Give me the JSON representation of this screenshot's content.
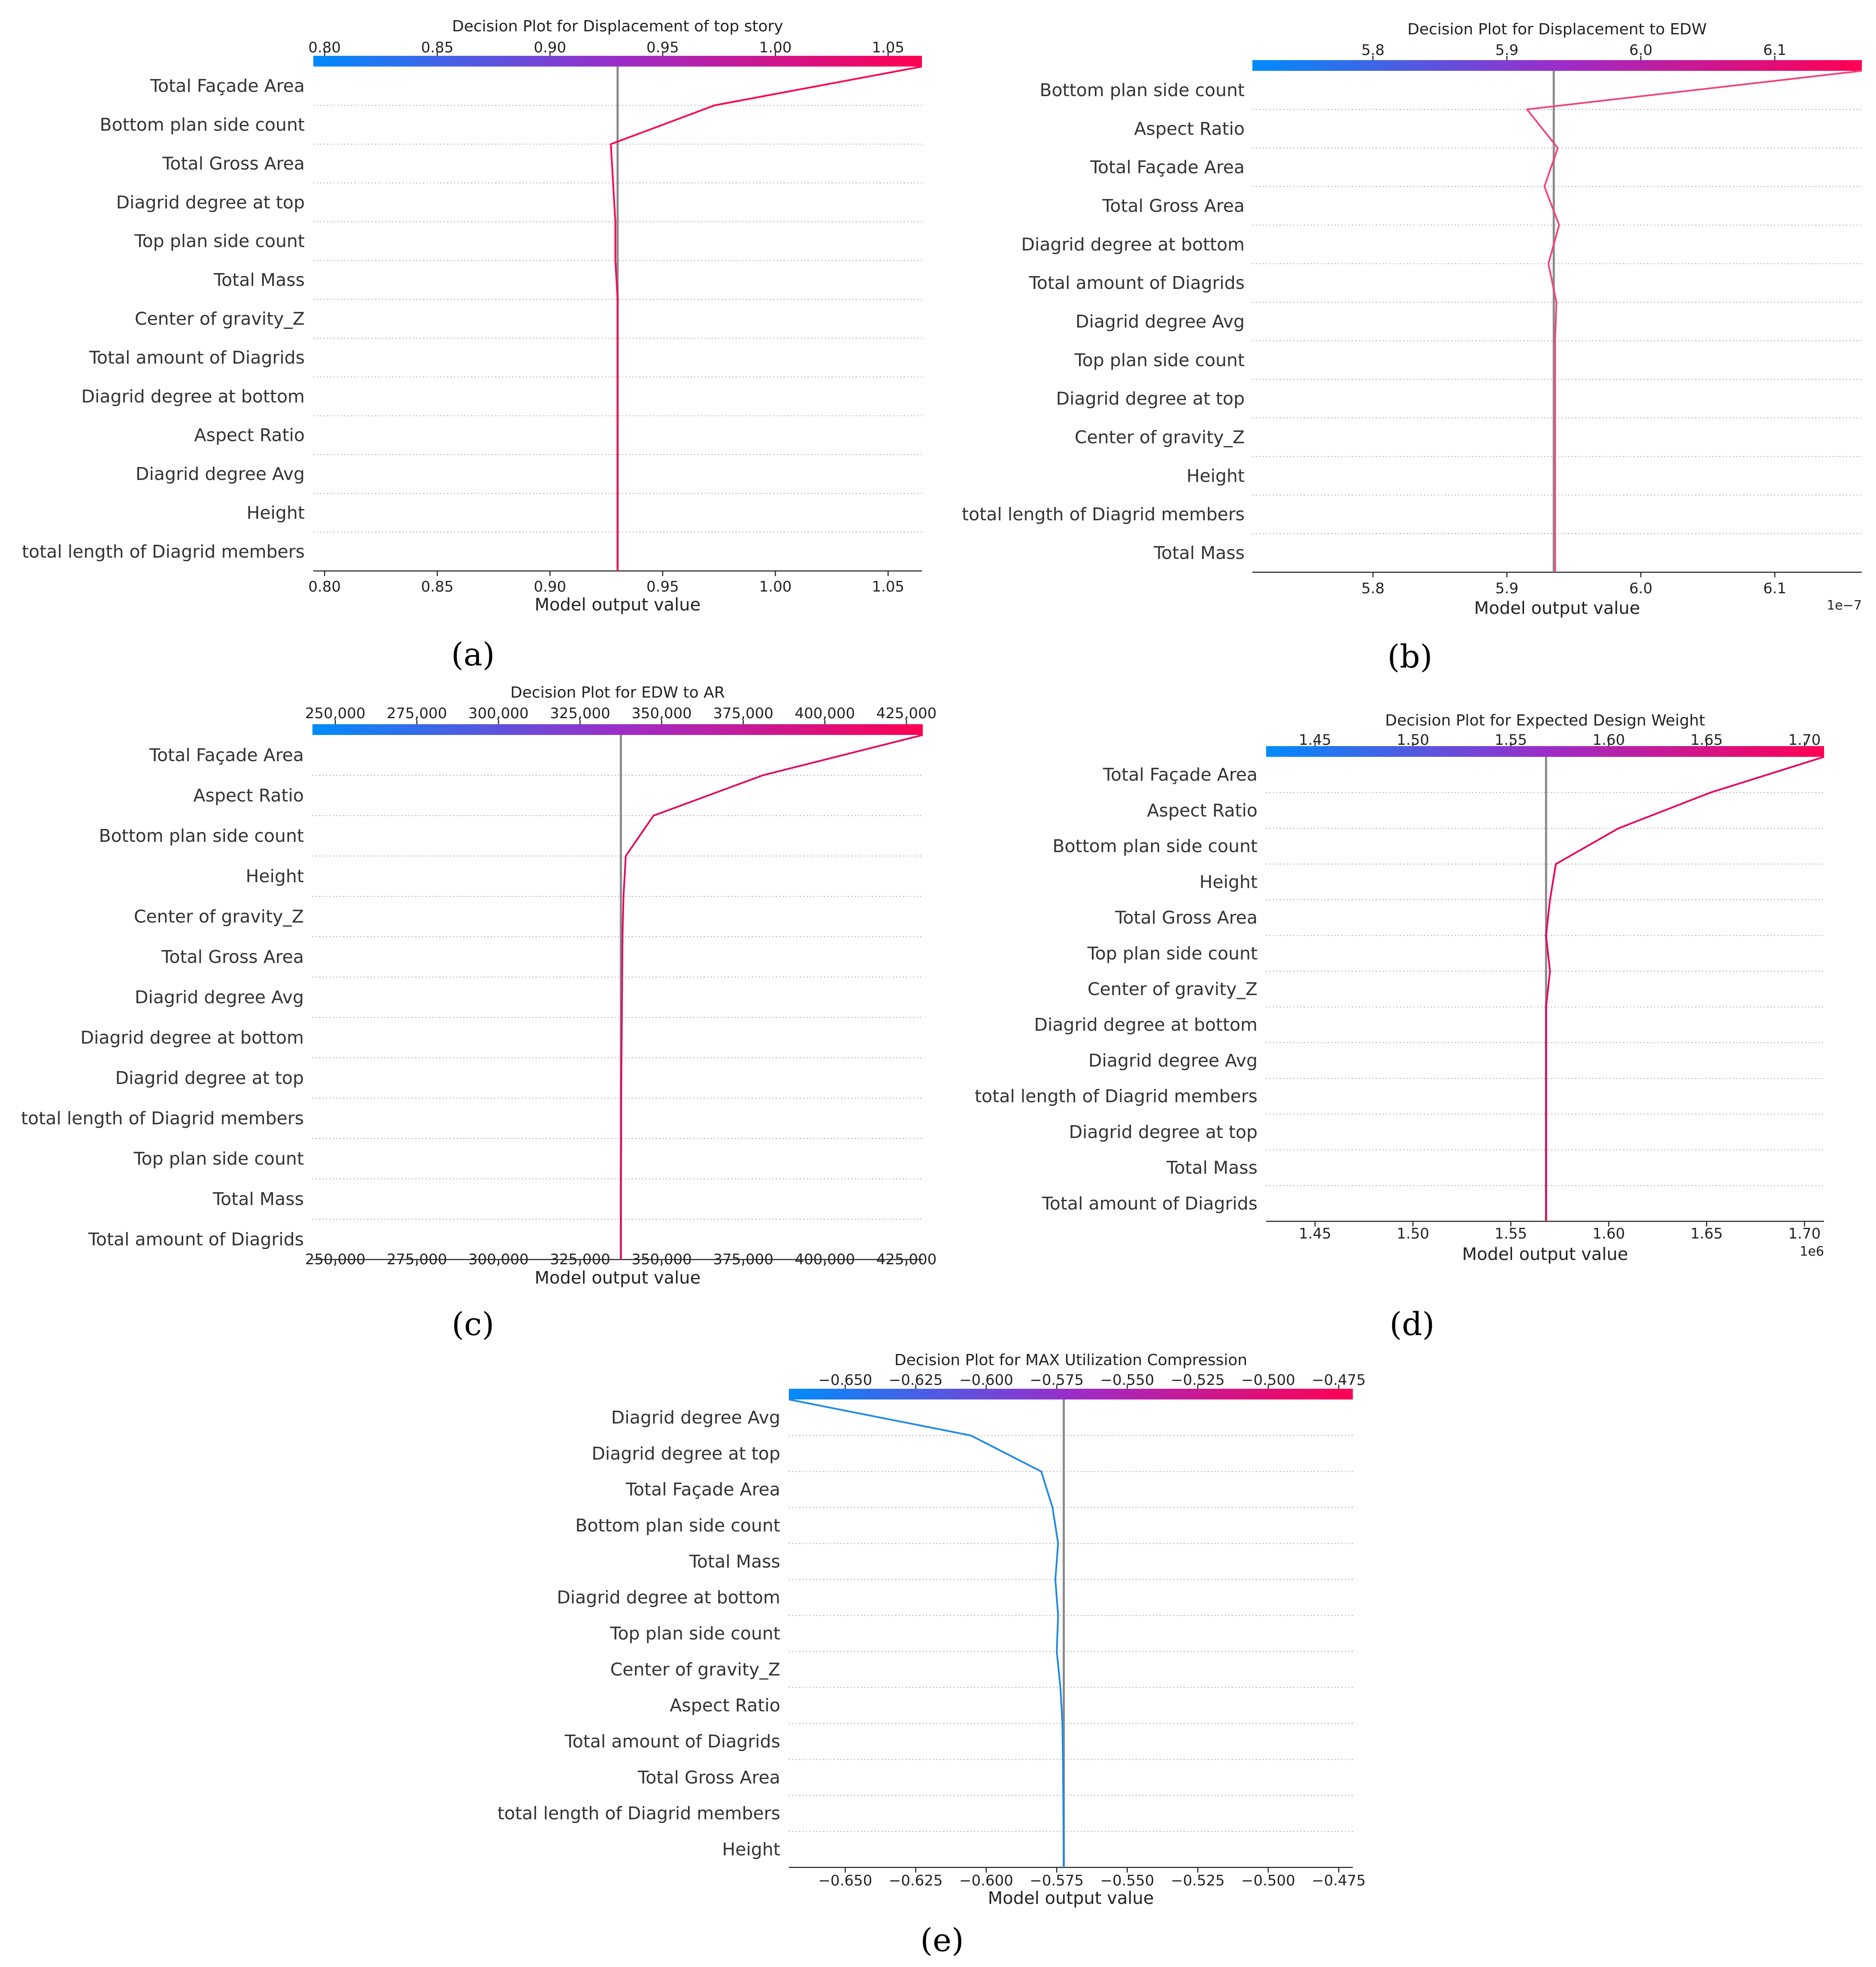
{
  "colors": {
    "low": "#1E88E5",
    "mid": "#8B3FC8",
    "high": "#FF0052",
    "baseline": "#8a8a8a"
  },
  "chart_data": [
    {
      "id": "a",
      "type": "decision_plot",
      "panel_label": "(a)",
      "title": "Decision Plot for Displacement of top story",
      "xlabel": "Model output value",
      "multiplier": "",
      "xlim": [
        0.795,
        1.065
      ],
      "ticks": [
        0.8,
        0.85,
        0.9,
        0.95,
        1.0,
        1.05
      ],
      "tick_labels": [
        "0.80",
        "0.85",
        "0.90",
        "0.95",
        "1.00",
        "1.05"
      ],
      "base_value": 0.93,
      "features": [
        "Total Façade Area",
        "Bottom plan side count",
        "Total Gross Area",
        "Diagrid degree at top",
        "Top plan side count",
        "Total Mass",
        "Center of gravity_Z",
        "Total amount of Diagrids",
        "Diagrid degree at bottom",
        "Aspect Ratio",
        "Diagrid degree Avg",
        "Height",
        "total length of Diagrid members"
      ],
      "path": [
        1.065,
        0.973,
        0.927,
        0.928,
        0.929,
        0.929,
        0.93,
        0.93,
        0.93,
        0.93,
        0.93,
        0.93,
        0.93,
        0.93
      ],
      "line_color": "#FF0052"
    },
    {
      "id": "b",
      "type": "decision_plot",
      "panel_label": "(b)",
      "title": "Decision Plot for Displacement to EDW",
      "xlabel": "Model output value",
      "multiplier": "1e−7",
      "xlim": [
        5.71,
        6.165
      ],
      "ticks": [
        5.8,
        5.9,
        6.0,
        6.1
      ],
      "tick_labels": [
        "5.8",
        "5.9",
        "6.0",
        "6.1"
      ],
      "base_value": 5.935,
      "features": [
        "Bottom plan side count",
        "Aspect Ratio",
        "Total Façade Area",
        "Total Gross Area",
        "Diagrid degree at bottom",
        "Total amount of Diagrids",
        "Diagrid degree Avg",
        "Top plan side count",
        "Diagrid degree at top",
        "Center of gravity_Z",
        "Height",
        "total length of Diagrid members",
        "Total Mass"
      ],
      "path": [
        6.165,
        5.915,
        5.938,
        5.928,
        5.939,
        5.931,
        5.937,
        5.936,
        5.936,
        5.936,
        5.936,
        5.936,
        5.936,
        5.936
      ],
      "line_color": "#F0437F"
    },
    {
      "id": "c",
      "type": "decision_plot",
      "panel_label": "(c)",
      "title": "Decision Plot for EDW to AR",
      "xlabel": "Model output value",
      "multiplier": "",
      "xlim": [
        243000,
        430000
      ],
      "ticks": [
        250000,
        275000,
        300000,
        325000,
        350000,
        375000,
        400000,
        425000
      ],
      "tick_labels": [
        "250,000",
        "275,000",
        "300,000",
        "325,000",
        "350,000",
        "375,000",
        "400,000",
        "425,000"
      ],
      "base_value": 337500,
      "features": [
        "Total Façade Area",
        "Aspect Ratio",
        "Bottom plan side count",
        "Height",
        "Center of gravity_Z",
        "Total Gross Area",
        "Diagrid degree Avg",
        "Diagrid degree at bottom",
        "Diagrid degree at top",
        "total length of Diagrid members",
        "Top plan side count",
        "Total Mass",
        "Total amount of Diagrids"
      ],
      "path": [
        430000,
        381000,
        347500,
        339000,
        338300,
        338000,
        337900,
        337800,
        337700,
        337600,
        337600,
        337500,
        337500,
        337500
      ],
      "line_color": "#E4075F"
    },
    {
      "id": "d",
      "type": "decision_plot",
      "panel_label": "(d)",
      "title": "Decision Plot for Expected Design Weight",
      "xlabel": "Model output value",
      "multiplier": "1e6",
      "xlim": [
        1.425,
        1.71
      ],
      "ticks": [
        1.45,
        1.5,
        1.55,
        1.6,
        1.65,
        1.7
      ],
      "tick_labels": [
        "1.45",
        "1.50",
        "1.55",
        "1.60",
        "1.65",
        "1.70"
      ],
      "base_value": 1.568,
      "features": [
        "Total Façade Area",
        "Aspect Ratio",
        "Bottom plan side count",
        "Height",
        "Total Gross Area",
        "Top plan side count",
        "Center of gravity_Z",
        "Diagrid degree at bottom",
        "Diagrid degree Avg",
        "total length of Diagrid members",
        "Diagrid degree at top",
        "Total Mass",
        "Total amount of Diagrids"
      ],
      "path": [
        1.71,
        1.652,
        1.605,
        1.573,
        1.57,
        1.568,
        1.57,
        1.568,
        1.568,
        1.568,
        1.568,
        1.568,
        1.568,
        1.568
      ],
      "line_color": "#E8005E"
    },
    {
      "id": "e",
      "type": "decision_plot",
      "panel_label": "(e)",
      "title": "Decision Plot for MAX Utilization Compression",
      "xlabel": "Model output value",
      "multiplier": "",
      "xlim": [
        -0.67,
        -0.47
      ],
      "ticks": [
        -0.65,
        -0.625,
        -0.6,
        -0.575,
        -0.55,
        -0.525,
        -0.5,
        -0.475
      ],
      "tick_labels": [
        "−0.650",
        "−0.625",
        "−0.600",
        "−0.575",
        "−0.550",
        "−0.525",
        "−0.500",
        "−0.475"
      ],
      "base_value": -0.5725,
      "features": [
        "Diagrid degree Avg",
        "Diagrid degree at top",
        "Total Façade Area",
        "Bottom plan side count",
        "Total Mass",
        "Diagrid degree at bottom",
        "Top plan side count",
        "Center of gravity_Z",
        "Aspect Ratio",
        "Total amount of Diagrids",
        "Total Gross Area",
        "total length of Diagrid members",
        "Height"
      ],
      "path": [
        -0.67,
        -0.6055,
        -0.5805,
        -0.5765,
        -0.5745,
        -0.5755,
        -0.5745,
        -0.575,
        -0.5737,
        -0.573,
        -0.5728,
        -0.5727,
        -0.5726,
        -0.5725
      ],
      "line_color": "#1E88E5"
    }
  ]
}
